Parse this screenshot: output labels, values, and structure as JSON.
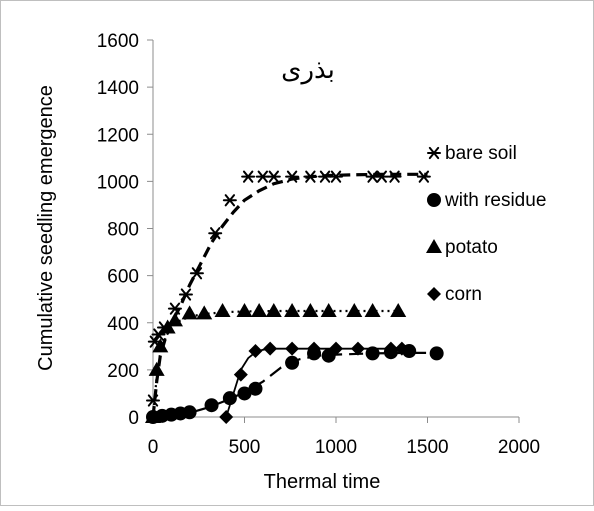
{
  "chart_data": {
    "type": "scatter",
    "title": "بذری",
    "xlabel": "Thermal time",
    "ylabel": "Cumulative seedling emergence",
    "xlim": [
      0,
      2000
    ],
    "ylim": [
      0,
      1600
    ],
    "x_ticks": [
      0,
      500,
      1000,
      1500,
      2000
    ],
    "y_ticks": [
      0,
      200,
      400,
      600,
      800,
      1000,
      1200,
      1400,
      1600
    ],
    "grid": false,
    "legend_position": "right",
    "series": [
      {
        "name": "bare soil",
        "marker": "asterisk",
        "fit_line": "dashed-thick",
        "x": [
          0,
          10,
          30,
          60,
          120,
          180,
          240,
          340,
          420,
          520,
          600,
          660,
          760,
          860,
          940,
          1000,
          1200,
          1250,
          1320,
          1480
        ],
        "y": [
          70,
          320,
          350,
          380,
          460,
          520,
          610,
          780,
          920,
          1020,
          1020,
          1020,
          1020,
          1020,
          1020,
          1020,
          1020,
          1020,
          1020,
          1020
        ],
        "fit_x": [
          0,
          20,
          40,
          70,
          100,
          150,
          200,
          260,
          320,
          380,
          440,
          500,
          580,
          660,
          760,
          860,
          960,
          1100,
          1250,
          1400,
          1500
        ],
        "fit_y": [
          0,
          150,
          260,
          340,
          400,
          470,
          560,
          650,
          740,
          810,
          870,
          920,
          960,
          990,
          1010,
          1020,
          1025,
          1028,
          1030,
          1030,
          1030
        ]
      },
      {
        "name": "with residue",
        "marker": "circle",
        "fit_line": "long-dash",
        "x": [
          0,
          50,
          100,
          150,
          200,
          320,
          420,
          500,
          560,
          760,
          880,
          960,
          1200,
          1300,
          1400,
          1550
        ],
        "y": [
          0,
          5,
          10,
          15,
          20,
          50,
          80,
          100,
          120,
          230,
          270,
          260,
          270,
          275,
          280,
          270
        ],
        "fit_x": [
          0,
          100,
          200,
          300,
          400,
          500,
          600,
          700,
          800,
          900,
          1000,
          1200,
          1400,
          1550
        ],
        "fit_y": [
          0,
          8,
          18,
          40,
          70,
          105,
          150,
          210,
          245,
          260,
          265,
          270,
          272,
          272
        ]
      },
      {
        "name": "potato",
        "marker": "triangle",
        "fit_line": "dotted",
        "x": [
          0,
          20,
          40,
          80,
          120,
          200,
          280,
          380,
          500,
          580,
          660,
          760,
          860,
          960,
          1100,
          1200,
          1340
        ],
        "y": [
          0,
          200,
          300,
          380,
          410,
          440,
          440,
          450,
          450,
          450,
          450,
          450,
          450,
          450,
          450,
          450,
          450
        ],
        "fit_x": [
          0,
          20,
          40,
          70,
          100,
          150,
          200,
          260,
          320,
          400,
          500,
          700,
          900,
          1100,
          1340
        ],
        "fit_y": [
          0,
          170,
          270,
          340,
          380,
          410,
          425,
          435,
          440,
          445,
          448,
          450,
          450,
          450,
          450
        ]
      },
      {
        "name": "corn",
        "marker": "diamond",
        "fit_line": "solid",
        "x": [
          400,
          480,
          560,
          640,
          760,
          880,
          1000,
          1120,
          1300,
          1360
        ],
        "y": [
          0,
          180,
          280,
          290,
          290,
          290,
          290,
          290,
          290,
          290
        ],
        "fit_x": [
          400,
          440,
          480,
          520,
          560,
          600,
          640,
          700,
          800,
          1000,
          1200,
          1400
        ],
        "fit_y": [
          0,
          100,
          200,
          250,
          275,
          285,
          290,
          290,
          290,
          290,
          290,
          290
        ]
      }
    ]
  }
}
